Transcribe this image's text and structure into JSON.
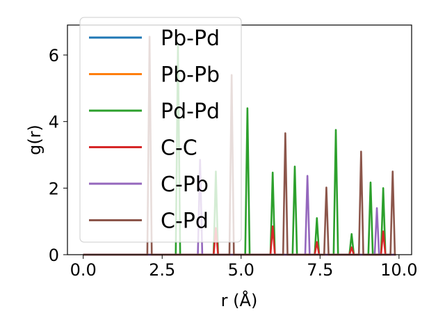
{
  "chart_data": {
    "type": "line",
    "xlabel": "r (Å)",
    "ylabel": "g(r)",
    "xlim": [
      -0.5,
      10.4
    ],
    "ylim": [
      0,
      6.9
    ],
    "xticks": [
      0.0,
      2.5,
      5.0,
      7.5,
      10.0
    ],
    "xtick_labels": [
      "0.0",
      "2.5",
      "5.0",
      "7.5",
      "10.0"
    ],
    "yticks": [
      0,
      2,
      4,
      6
    ],
    "ytick_labels": [
      "0",
      "2",
      "4",
      "6"
    ],
    "grid": false,
    "legend_position": "upper-left",
    "series": [
      {
        "name": "Pb-Pd",
        "color": "#1f77b4",
        "peaks": []
      },
      {
        "name": "Pb-Pb",
        "color": "#ff7f0e",
        "peaks": []
      },
      {
        "name": "Pd-Pd",
        "color": "#2ca02c",
        "peaks": [
          [
            3.0,
            6.3
          ],
          [
            4.2,
            2.5
          ],
          [
            5.2,
            4.4
          ],
          [
            6.0,
            2.47
          ],
          [
            6.7,
            2.65
          ],
          [
            7.4,
            1.1
          ],
          [
            8.0,
            3.75
          ],
          [
            8.5,
            0.62
          ],
          [
            9.1,
            2.17
          ],
          [
            9.5,
            2.0
          ]
        ]
      },
      {
        "name": "C-C",
        "color": "#d62728",
        "peaks": [
          [
            4.2,
            0.8
          ],
          [
            6.0,
            0.85
          ],
          [
            7.4,
            0.38
          ],
          [
            8.5,
            0.22
          ],
          [
            9.5,
            0.7
          ]
        ]
      },
      {
        "name": "C-Pb",
        "color": "#9467bd",
        "peaks": [
          [
            3.7,
            2.85
          ],
          [
            7.1,
            2.37
          ],
          [
            9.3,
            1.4
          ]
        ]
      },
      {
        "name": "C-Pd",
        "color": "#8c564b",
        "peaks": [
          [
            2.1,
            6.55
          ],
          [
            4.7,
            5.4
          ],
          [
            6.4,
            3.65
          ],
          [
            7.7,
            2.02
          ],
          [
            8.8,
            3.1
          ],
          [
            9.8,
            2.5
          ]
        ]
      }
    ]
  }
}
